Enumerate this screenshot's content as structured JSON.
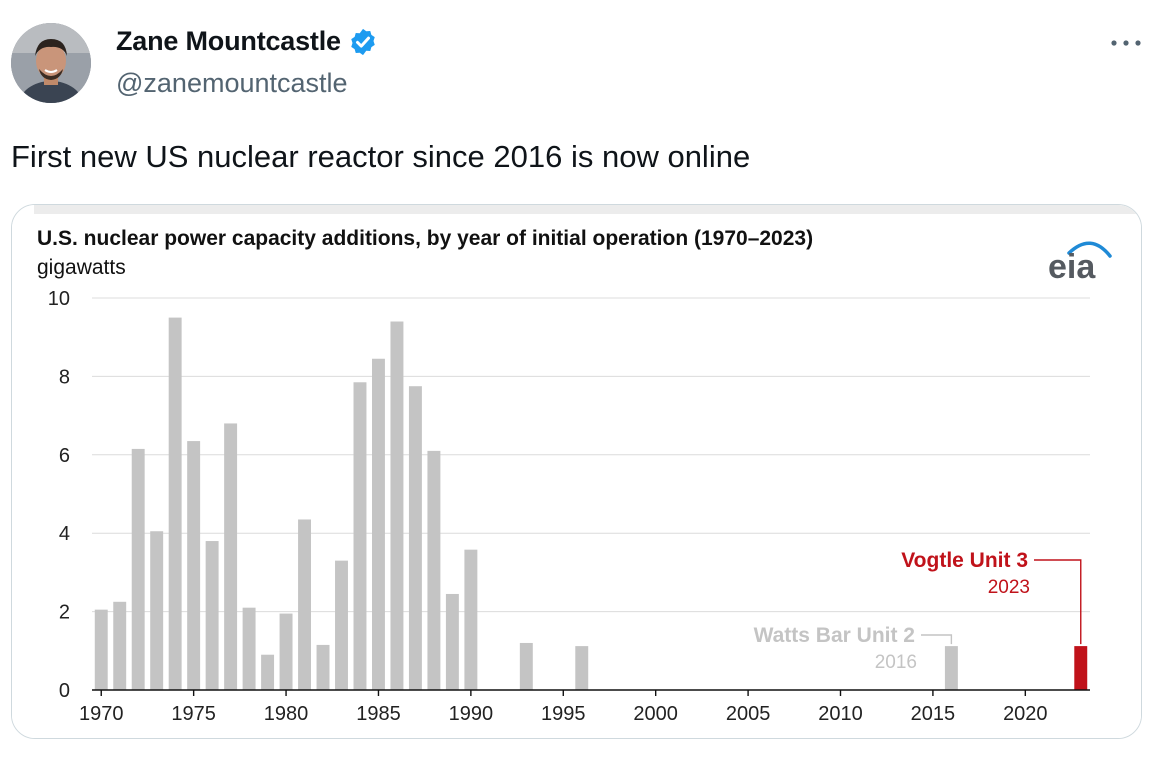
{
  "tweet": {
    "author_name": "Zane Mountcastle",
    "handle": "@zanemountcastle",
    "text": "First new US nuclear reactor since 2016 is now online",
    "verified": true,
    "accent_color": "#1d9bf0"
  },
  "icons": {
    "verified": "verified-badge-icon",
    "more": "more-options-icon",
    "logo": "eia-logo"
  },
  "chart_data": {
    "type": "bar",
    "title": "U.S. nuclear power capacity additions, by year of initial operation (1970–2023)",
    "ylabel": "gigawatts",
    "ylim": [
      0,
      10
    ],
    "yticks": [
      0,
      2,
      4,
      6,
      8,
      10
    ],
    "xlim": [
      1969.5,
      2023.5
    ],
    "xticks": [
      1970,
      1975,
      1980,
      1985,
      1990,
      1995,
      2000,
      2005,
      2010,
      2015,
      2020
    ],
    "grid": true,
    "logo_text": "eia",
    "bar_color": "#c4c4c4",
    "highlight_color": "#c0121a",
    "x": [
      1970,
      1971,
      1972,
      1973,
      1974,
      1975,
      1976,
      1977,
      1978,
      1979,
      1980,
      1981,
      1982,
      1983,
      1984,
      1985,
      1986,
      1987,
      1988,
      1989,
      1990,
      1993,
      1996,
      2016,
      2023
    ],
    "values": [
      2.05,
      2.25,
      6.15,
      4.05,
      9.5,
      6.35,
      3.8,
      6.8,
      2.1,
      0.9,
      1.95,
      4.35,
      1.15,
      3.3,
      7.85,
      8.45,
      9.4,
      7.75,
      6.1,
      2.45,
      3.58,
      1.2,
      1.12,
      1.12,
      1.12
    ],
    "annotations": [
      {
        "name": "Watts Bar Unit 2",
        "year_label": "2016",
        "x": 2016,
        "value": 1.12,
        "color": "#c4c4c4"
      },
      {
        "name": "Vogtle Unit 3",
        "year_label": "2023",
        "x": 2023,
        "value": 1.12,
        "color": "#c0121a"
      }
    ]
  }
}
